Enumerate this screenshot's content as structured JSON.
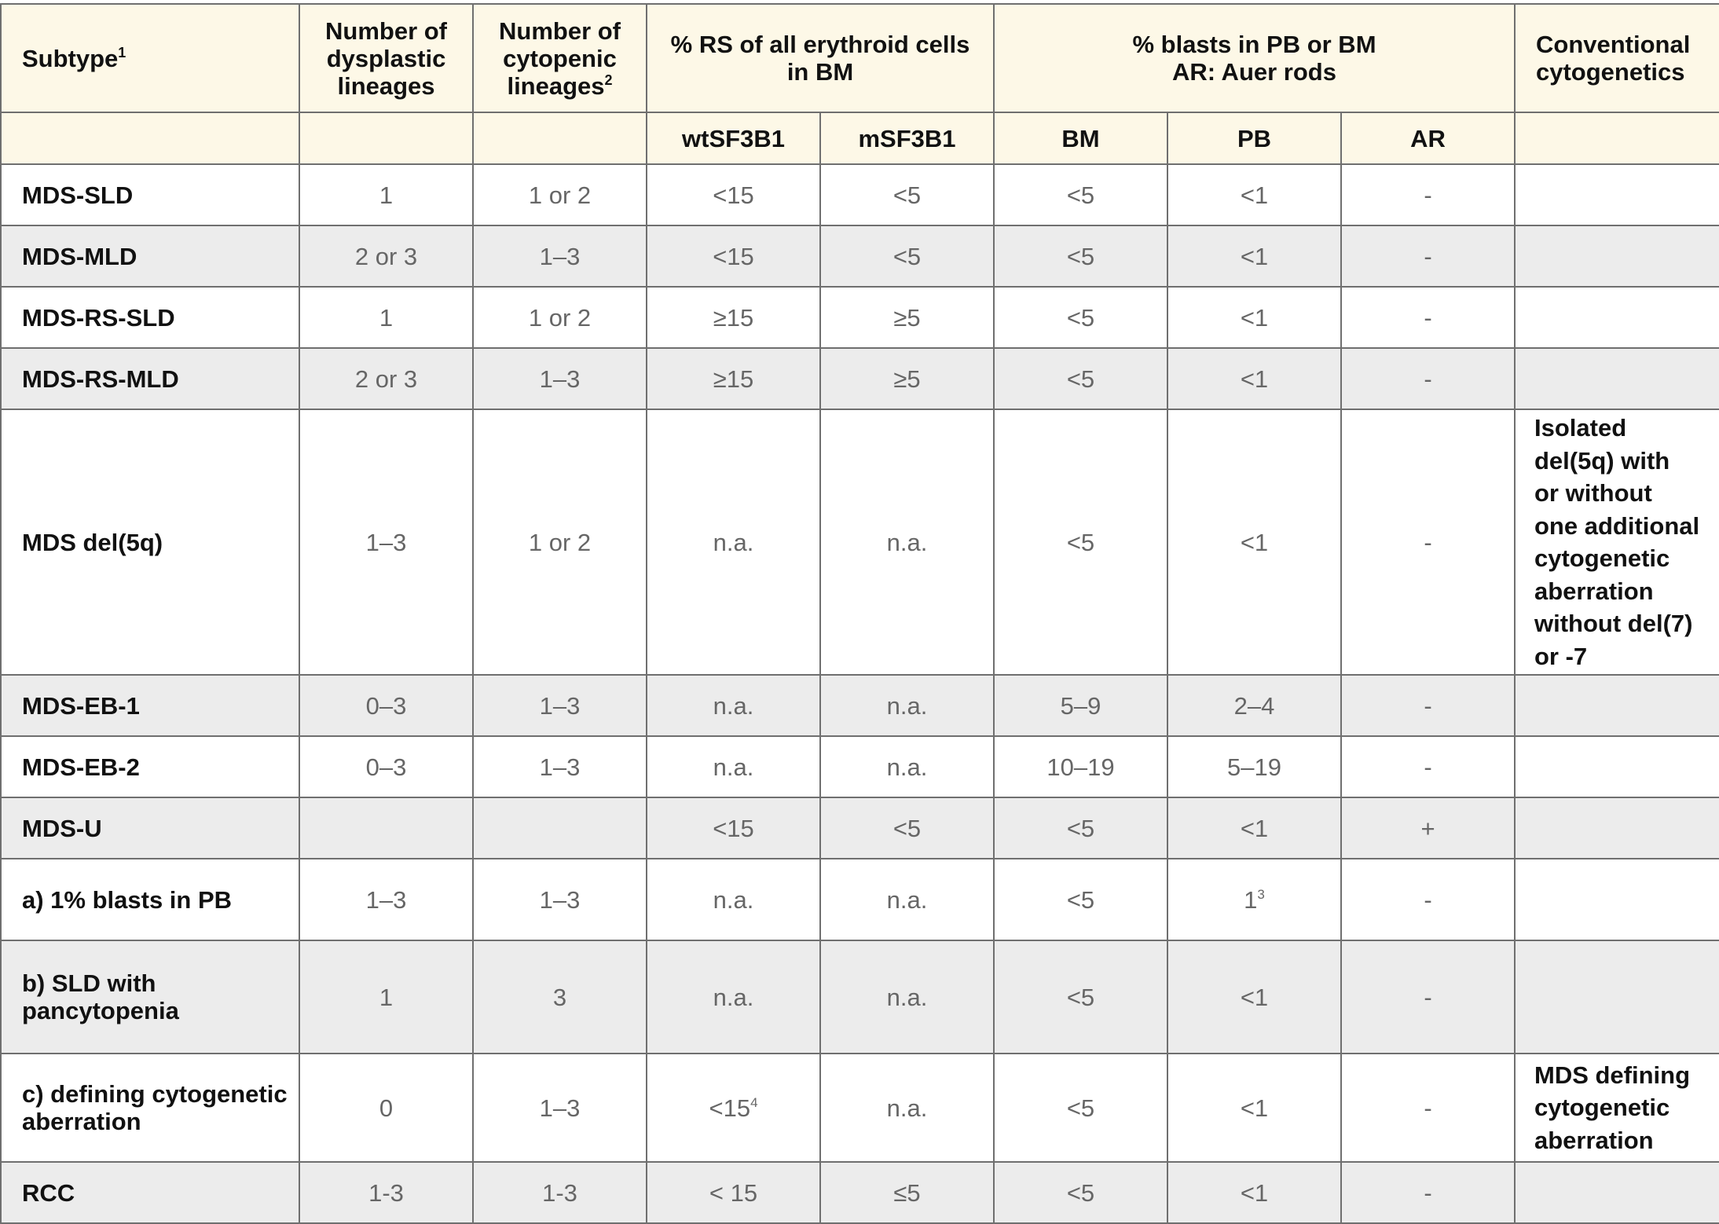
{
  "header": {
    "subtype": "Subtype",
    "subtype_sup": "1",
    "dysplastic": [
      "Number of",
      "dysplastic",
      "lineages"
    ],
    "cytopenic": [
      "Number of",
      "cytopenic",
      "lineages"
    ],
    "cytopenic_sup": "2",
    "rs": [
      "% RS of all erythroid cells",
      "in BM"
    ],
    "blasts": [
      "% blasts in PB or BM",
      "AR: Auer rods"
    ],
    "conventional": [
      "Conventional",
      "cytogenetics"
    ]
  },
  "subheader": {
    "wt": "wtSF3B1",
    "m": "mSF3B1",
    "bm": "BM",
    "pb": "PB",
    "ar": "AR"
  },
  "rows": [
    {
      "subtype": [
        "MDS-SLD"
      ],
      "dys": "1",
      "cyt": "1 or 2",
      "wt": "<15",
      "wt_sup": "",
      "m": "<5",
      "bm": "<5",
      "pb": "<1",
      "pb_sup": "",
      "ar": "-",
      "conv": [],
      "shade": false
    },
    {
      "subtype": [
        "MDS-MLD"
      ],
      "dys": "2 or 3",
      "cyt": "1–3",
      "wt": "<15",
      "wt_sup": "",
      "m": "<5",
      "bm": "<5",
      "pb": "<1",
      "pb_sup": "",
      "ar": "-",
      "conv": [],
      "shade": true
    },
    {
      "subtype": [
        "MDS-RS-SLD"
      ],
      "dys": "1",
      "cyt": "1 or 2",
      "wt": "≥15",
      "wt_sup": "",
      "m": "≥5",
      "bm": "<5",
      "pb": "<1",
      "pb_sup": "",
      "ar": "-",
      "conv": [],
      "shade": false
    },
    {
      "subtype": [
        "MDS-RS-MLD"
      ],
      "dys": "2 or 3",
      "cyt": "1–3",
      "wt": "≥15",
      "wt_sup": "",
      "m": "≥5",
      "bm": "<5",
      "pb": "<1",
      "pb_sup": "",
      "ar": "-",
      "conv": [],
      "shade": true
    },
    {
      "subtype": [
        "MDS del(5q)"
      ],
      "dys": "1–3",
      "cyt": "1 or 2",
      "wt": "n.a.",
      "wt_sup": "",
      "m": "n.a.",
      "bm": "<5",
      "pb": "<1",
      "pb_sup": "",
      "ar": "-",
      "conv": [
        "Isolated",
        "del(5q) with",
        "or without",
        "one additional",
        "cytogenetic",
        "aberration",
        "without del(7)",
        "or -7"
      ],
      "shade": false
    },
    {
      "subtype": [
        "MDS-EB-1"
      ],
      "dys": "0–3",
      "cyt": "1–3",
      "wt": "n.a.",
      "wt_sup": "",
      "m": "n.a.",
      "bm": "5–9",
      "pb": "2–4",
      "pb_sup": "",
      "ar": "-",
      "conv": [],
      "shade": true
    },
    {
      "subtype": [
        "MDS-EB-2"
      ],
      "dys": "0–3",
      "cyt": "1–3",
      "wt": "n.a.",
      "wt_sup": "",
      "m": "n.a.",
      "bm": "10–19",
      "pb": "5–19",
      "pb_sup": "",
      "ar": "-",
      "conv": [],
      "shade": false
    },
    {
      "subtype": [
        "MDS-U"
      ],
      "dys": "",
      "cyt": "",
      "wt": "<15",
      "wt_sup": "",
      "m": "<5",
      "bm": "<5",
      "pb": "<1",
      "pb_sup": "",
      "ar": "+",
      "conv": [],
      "shade": true
    },
    {
      "subtype": [
        "a) 1% blasts in PB"
      ],
      "dys": "1–3",
      "cyt": "1–3",
      "wt": "n.a.",
      "wt_sup": "",
      "m": "n.a.",
      "bm": "<5",
      "pb": "1",
      "pb_sup": "3",
      "ar": "-",
      "conv": [],
      "shade": false
    },
    {
      "subtype": [
        "b) SLD with",
        "pancytopenia"
      ],
      "dys": "1",
      "cyt": "3",
      "wt": "n.a.",
      "wt_sup": "",
      "m": "n.a.",
      "bm": "<5",
      "pb": "<1",
      "pb_sup": "",
      "ar": "-",
      "conv": [],
      "shade": true
    },
    {
      "subtype": [
        "c) defining cytogenetic",
        "aberration"
      ],
      "dys": "0",
      "cyt": "1–3",
      "wt": "<15",
      "wt_sup": "4",
      "m": "n.a.",
      "bm": "<5",
      "pb": "<1",
      "pb_sup": "",
      "ar": "-",
      "conv": [
        "MDS defining",
        "cytogenetic",
        "aberration"
      ],
      "shade": false
    },
    {
      "subtype": [
        "RCC"
      ],
      "dys": "1-3",
      "cyt": "1-3",
      "wt": "< 15",
      "wt_sup": "",
      "m": "≤5",
      "bm": "<5",
      "pb": "<1",
      "pb_sup": "",
      "ar": "-",
      "conv": [],
      "shade": true
    }
  ]
}
